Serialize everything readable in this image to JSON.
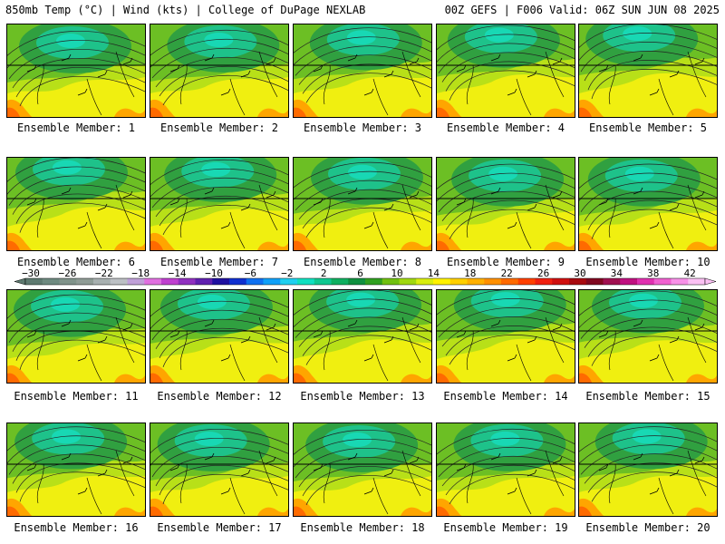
{
  "header": {
    "left": "850mb Temp (°C) | Wind (kts) | College of DuPage NEXLAB",
    "right": "00Z GEFS | F006 Valid: 06Z SUN JUN 08 2025"
  },
  "members": [
    "Ensemble Member: 1",
    "Ensemble Member: 2",
    "Ensemble Member: 3",
    "Ensemble Member: 4",
    "Ensemble Member: 5",
    "Ensemble Member: 6",
    "Ensemble Member: 7",
    "Ensemble Member: 8",
    "Ensemble Member: 9",
    "Ensemble Member: 10",
    "Ensemble Member: 11",
    "Ensemble Member: 12",
    "Ensemble Member: 13",
    "Ensemble Member: 14",
    "Ensemble Member: 15",
    "Ensemble Member: 16",
    "Ensemble Member: 17",
    "Ensemble Member: 18",
    "Ensemble Member: 19",
    "Ensemble Member: 20"
  ],
  "colorbar": {
    "labels": [
      "−30",
      "−26",
      "−22",
      "−18",
      "−14",
      "−10",
      "−6",
      "−2",
      "2",
      "6",
      "10",
      "14",
      "18",
      "22",
      "26",
      "30",
      "34",
      "38",
      "42"
    ],
    "colors": [
      "#5e7a70",
      "#6e8a80",
      "#80938a",
      "#8f9c96",
      "#a8b0b0",
      "#bcc0c4",
      "#c0a0d8",
      "#e070e0",
      "#c040d0",
      "#9030c0",
      "#6020b0",
      "#2010a0",
      "#1030d0",
      "#1070f0",
      "#10a0f8",
      "#20d0f0",
      "#10e0c0",
      "#10c890",
      "#10b060",
      "#109040",
      "#30a020",
      "#70c010",
      "#a0d810",
      "#d8ee10",
      "#fff200",
      "#ffd000",
      "#ffb000",
      "#ff9000",
      "#ff6a00",
      "#ff4000",
      "#f02010",
      "#d01010",
      "#a80a10",
      "#800820",
      "#a01050",
      "#c01080",
      "#e030b0",
      "#f060d0",
      "#f890e8",
      "#fbc0f4"
    ]
  },
  "field_colors": {
    "cold_core": "#18d8b4",
    "cool": "#1ec28a",
    "mid_green": "#30a040",
    "light_green": "#6cbf24",
    "yellow_green": "#b8e018",
    "yellow": "#f0ef10",
    "orange": "#ffa500",
    "warm": "#ff6a00",
    "contour": "#222222",
    "border": "#000000"
  }
}
